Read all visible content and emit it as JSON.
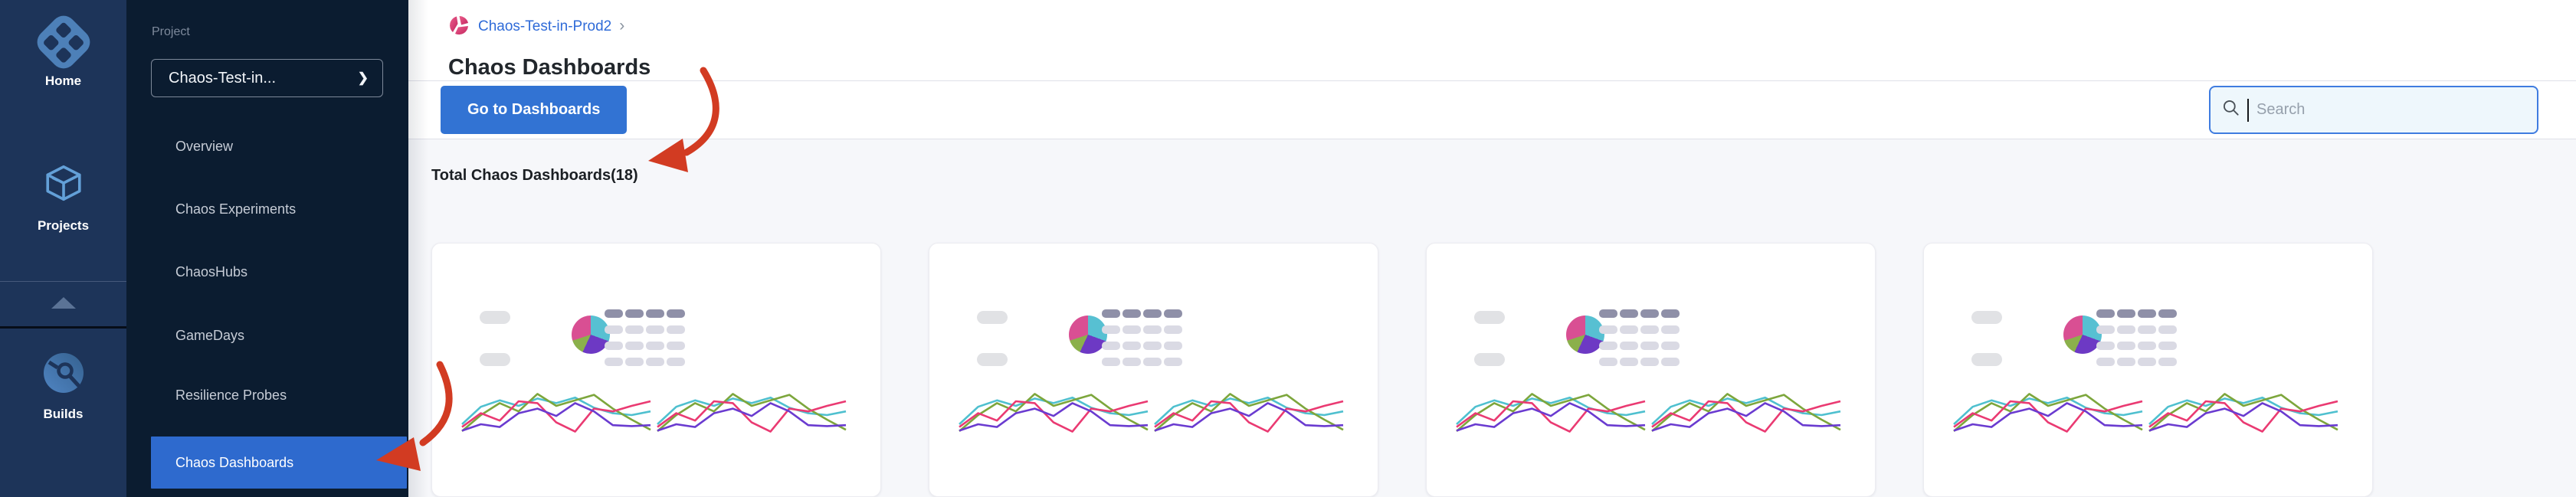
{
  "rail": {
    "items": [
      {
        "icon": "home-icon",
        "label": "Home"
      },
      {
        "icon": "projects-icon",
        "label": "Projects"
      },
      {
        "icon": "builds-icon",
        "label": "Builds"
      }
    ],
    "collapse_icon": "chevron-up-icon"
  },
  "sidebar": {
    "section_label": "Project",
    "project_selector": {
      "value": "Chaos-Test-in...",
      "chevron": "❯"
    },
    "items": [
      "Overview",
      "Chaos Experiments",
      "ChaosHubs",
      "GameDays",
      "Resilience Probes",
      "Chaos Dashboards"
    ],
    "active_item": "Chaos Dashboards"
  },
  "header": {
    "breadcrumb": {
      "icon": "chaos-project-icon",
      "project": "Chaos-Test-in-Prod2",
      "separator": "›"
    },
    "title": "Chaos Dashboards"
  },
  "toolbar": {
    "go_to_dashboards": "Go to Dashboards",
    "search": {
      "placeholder": "Search",
      "value": "",
      "icon": "search-icon"
    }
  },
  "content": {
    "total_label": "Total Chaos Dashboards(18)",
    "cards": {
      "count": 4,
      "pie_slices": [
        {
          "color": "#57c0d2",
          "from": 0,
          "to": 110
        },
        {
          "color": "#6d39c4",
          "from": 110,
          "to": 205
        },
        {
          "color": "#8bb04b",
          "from": 205,
          "to": 252
        },
        {
          "color": "#d94f93",
          "from": 252,
          "to": 360
        }
      ],
      "table": {
        "rows": 4,
        "cols": 4,
        "header_color": "#8f90a8",
        "cell_color": "#dadae4"
      },
      "sparkline": {
        "series": [
          {
            "name": "cyan",
            "color": "#4fc0cf",
            "values": [
              80,
              42,
              28,
              40,
              24,
              34,
              22,
              44,
              56,
              60,
              52
            ]
          },
          {
            "name": "green",
            "color": "#7da63c",
            "values": [
              95,
              60,
              34,
              52,
              14,
              40,
              28,
              16,
              46,
              70,
              92
            ]
          },
          {
            "name": "pink",
            "color": "#ea3a72",
            "values": [
              86,
              56,
              72,
              30,
              34,
              76,
              96,
              46,
              52,
              40,
              30
            ]
          },
          {
            "name": "purple",
            "color": "#6a3bd0",
            "values": [
              94,
              80,
              86,
              56,
              46,
              62,
              34,
              52,
              82,
              84,
              82
            ]
          }
        ]
      }
    }
  },
  "annotations": {
    "arrow_color": "#d23b22",
    "arrows": [
      "points-to-go-to-dashboards-button",
      "points-to-chaos-dashboards-menu-item"
    ]
  },
  "colors": {
    "rail_bg": "#1d3459",
    "sidebar_bg": "#0b1c30",
    "active_item_blue": "#2e6ace",
    "accent_blue": "#3273d3",
    "breadcrumb_link": "#2f6bd8",
    "search_border": "#3f7ce0",
    "search_bg": "#eef7fc",
    "content_bg": "#f6f7fa"
  }
}
